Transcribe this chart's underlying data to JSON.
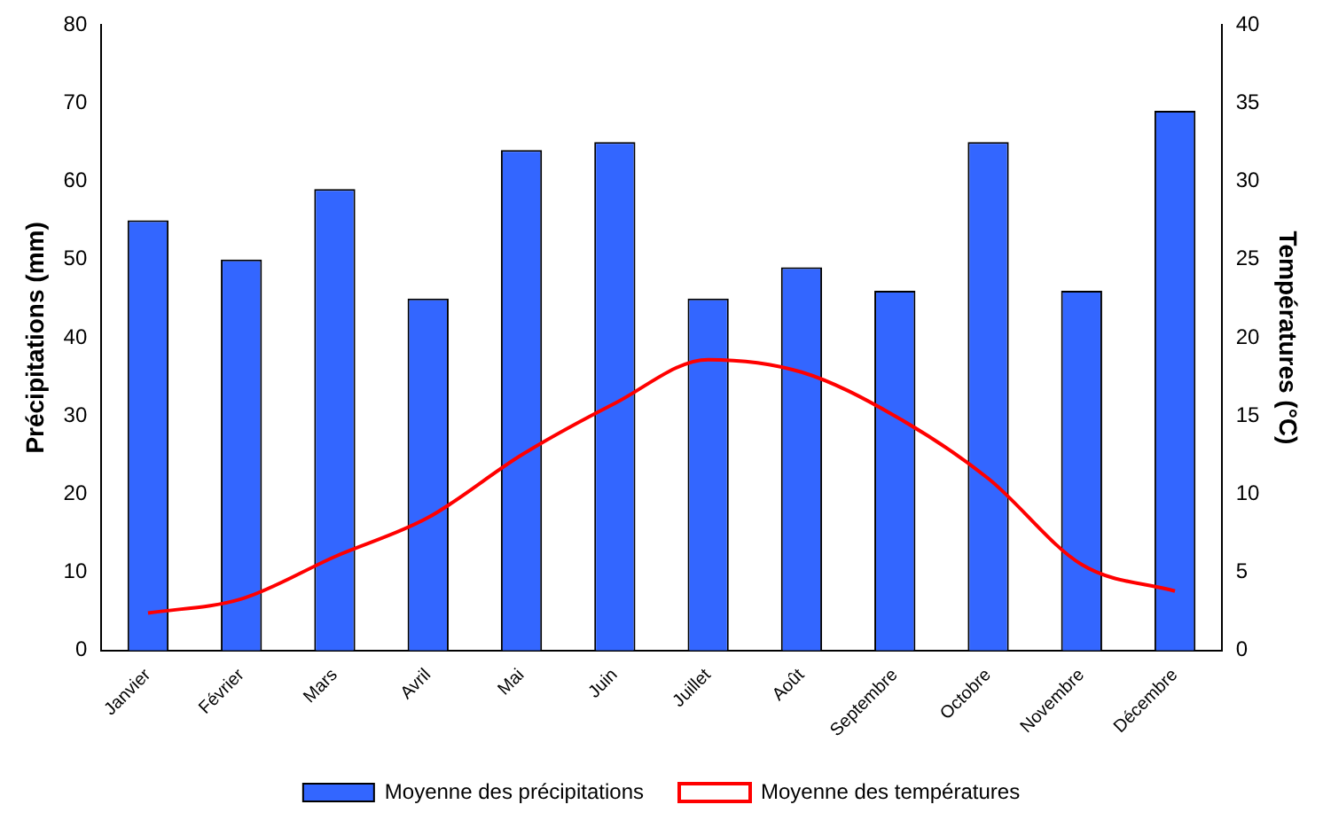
{
  "chart_data": {
    "type": "bar",
    "ylabel": "Précipitations (mm)",
    "y2label": "Températures (°C)",
    "categories": [
      "Janvier",
      "Février",
      "Mars",
      "Avril",
      "Mai",
      "Juin",
      "Juillet",
      "Août",
      "Septembre",
      "Octobre",
      "Novembre",
      "Décembre"
    ],
    "series": [
      {
        "name": "Moyenne des précipitations",
        "color": "#3366ff",
        "values": [
          55,
          50,
          59,
          45,
          64,
          65,
          45,
          49,
          46,
          65,
          46,
          69
        ]
      },
      {
        "name": "Moyenne des températures",
        "type": "line",
        "axis": "y2",
        "color": "#ff0000",
        "marker": "none",
        "values": [
          2.4,
          3.3,
          6,
          8.5,
          12.5,
          15.8,
          18.6,
          17.8,
          15,
          11,
          5.5,
          3.8
        ]
      }
    ],
    "ylim": [
      0,
      80
    ],
    "yticks": [
      0,
      10,
      20,
      30,
      40,
      50,
      60,
      70,
      80
    ],
    "y2lim": [
      0,
      40
    ],
    "y2ticks": [
      0,
      5,
      10,
      15,
      20,
      25,
      30,
      35,
      40
    ],
    "grid": false,
    "legend": "bottom"
  }
}
